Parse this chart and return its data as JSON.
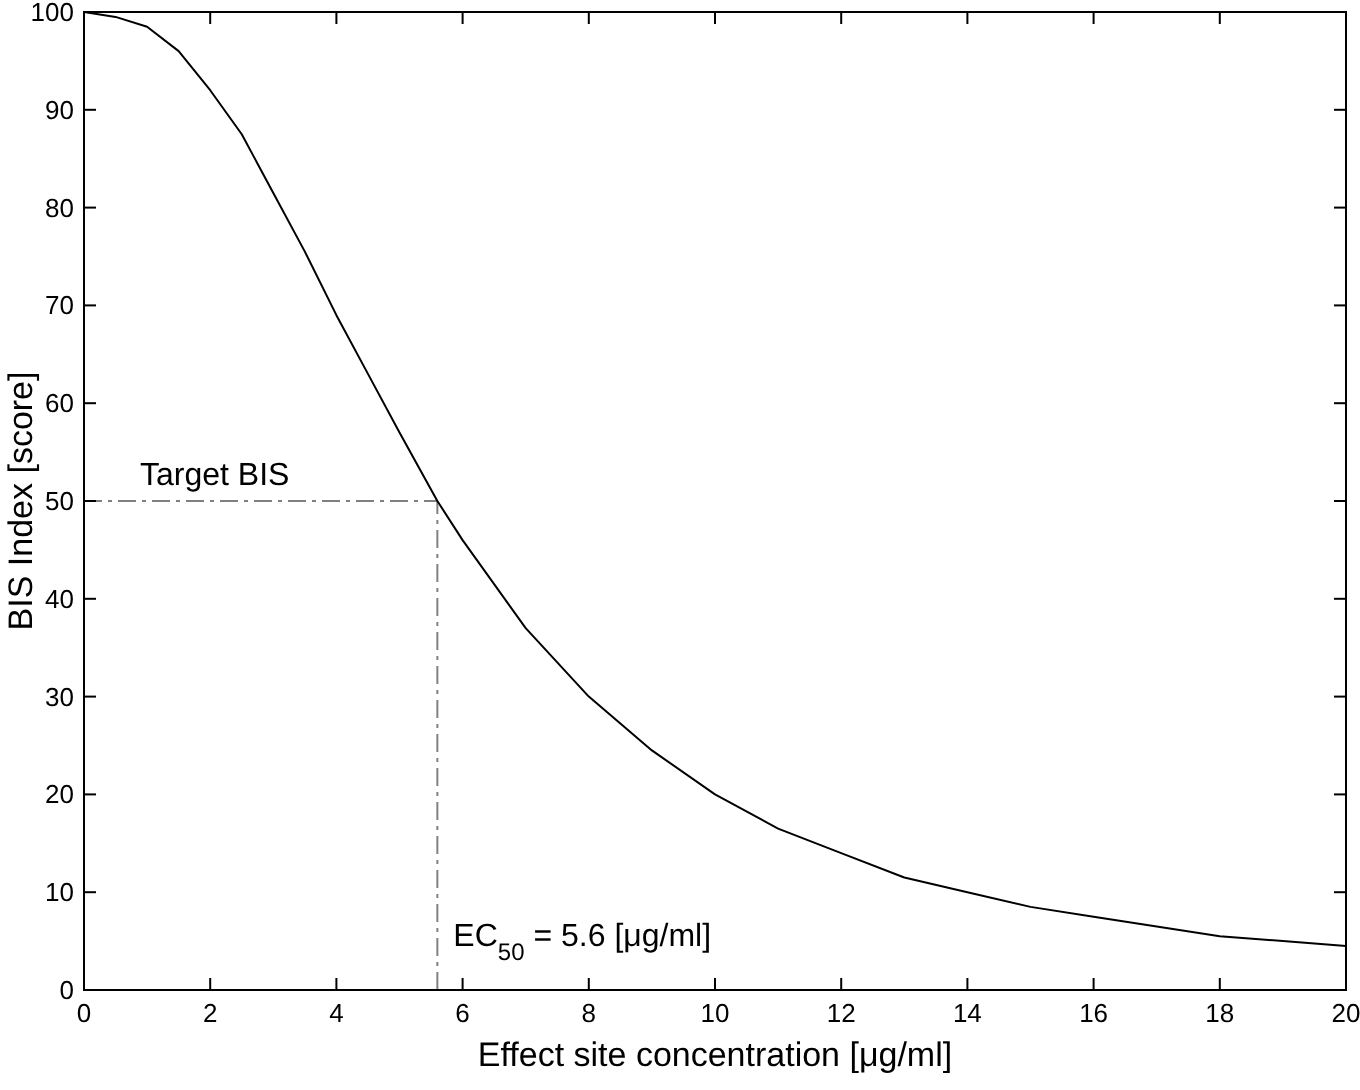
{
  "chart_data": {
    "type": "line",
    "xlabel": "Effect site concentration [μg/ml]",
    "ylabel": "BIS Index [score]",
    "x": [
      0,
      0.5,
      1,
      1.5,
      2,
      2.5,
      3,
      3.5,
      4,
      4.5,
      5,
      5.6,
      6,
      7,
      8,
      9,
      10,
      11,
      12,
      13,
      14,
      15,
      16,
      17,
      18,
      19,
      20
    ],
    "series": [
      {
        "color": "#000000",
        "values": [
          100,
          99.5,
          98.5,
          96,
          92,
          87.5,
          81.5,
          75.5,
          69,
          63,
          57,
          50,
          46,
          37,
          30,
          24.5,
          20,
          16.5,
          14,
          11.5,
          10,
          8.5,
          7.5,
          6.5,
          5.5,
          5,
          4.5
        ]
      }
    ],
    "xlim": [
      0,
      20
    ],
    "xticks": [
      0,
      2,
      4,
      6,
      8,
      10,
      12,
      14,
      16,
      18,
      20
    ],
    "ylim": [
      0,
      100
    ],
    "yticks": [
      0,
      10,
      20,
      30,
      40,
      50,
      60,
      70,
      80,
      90,
      100
    ],
    "grid": false,
    "marker": "none",
    "line_style": "solid",
    "ref_lines": [
      {
        "axis": "y",
        "value": 50,
        "label": "Target BIS",
        "color": "#808080",
        "line_style": "dashed"
      },
      {
        "axis": "x",
        "value": 5.6,
        "label": "EC$_{50}$ = 5.6 [μg/ml]",
        "color": "#808080",
        "line_style": "dashed"
      }
    ]
  }
}
